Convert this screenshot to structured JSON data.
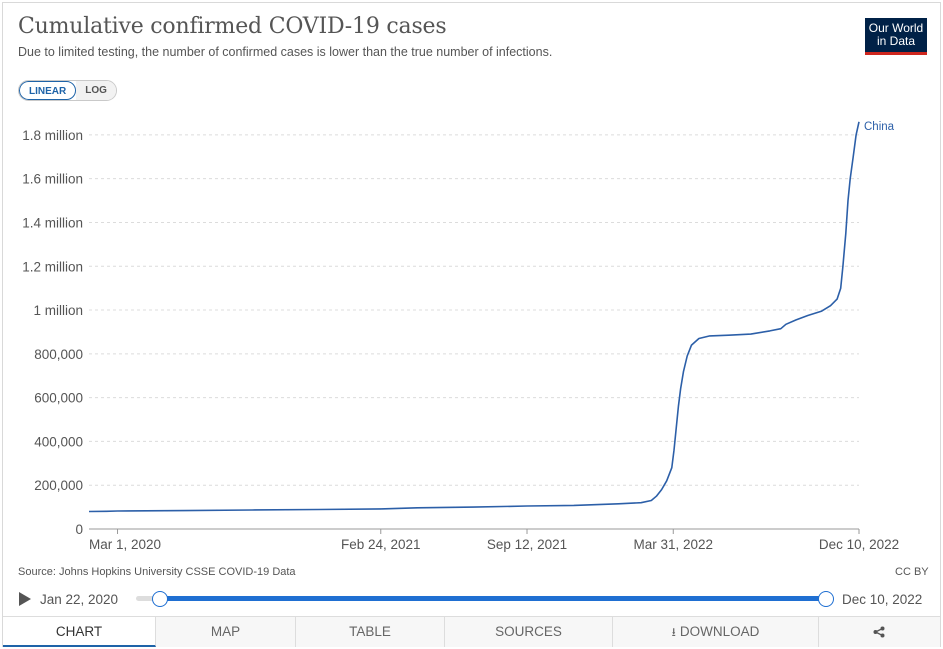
{
  "header": {
    "title": "Cumulative confirmed COVID-19 cases",
    "subtitle": "Due to limited testing, the number of confirmed cases is lower than the true number of infections.",
    "logo_line1": "Our World",
    "logo_line2": "in Data"
  },
  "scale_toggle": {
    "linear": "LINEAR",
    "log": "LOG",
    "selected": "LINEAR"
  },
  "chart_data": {
    "type": "line",
    "x_axis_type": "date",
    "y_axis_scale": "linear",
    "ylim": [
      0,
      1900000
    ],
    "grid": true,
    "y_ticks": [
      0,
      200000,
      400000,
      600000,
      800000,
      1000000,
      1200000,
      1400000,
      1600000,
      1800000
    ],
    "y_tick_labels": [
      "0",
      "200,000",
      "400,000",
      "600,000",
      "800,000",
      "1 million",
      "1.2 million",
      "1.4 million",
      "1.6 million",
      "1.8 million"
    ],
    "x_tick_labels": [
      "Mar 1, 2020",
      "Feb 24, 2021",
      "Sep 12, 2021",
      "Mar 31, 2022",
      "Dec 10, 2022"
    ],
    "x_tick_dates": [
      "2020-03-01",
      "2021-02-24",
      "2021-09-12",
      "2022-03-31",
      "2022-12-10"
    ],
    "series": [
      {
        "name": "China",
        "color": "#2c5fa8",
        "points": [
          [
            "2020-01-22",
            80000
          ],
          [
            "2020-02-15",
            81000
          ],
          [
            "2020-03-01",
            82000
          ],
          [
            "2020-06-01",
            84000
          ],
          [
            "2020-09-01",
            87000
          ],
          [
            "2020-12-01",
            89000
          ],
          [
            "2021-02-24",
            92000
          ],
          [
            "2021-04-15",
            97000
          ],
          [
            "2021-07-01",
            100000
          ],
          [
            "2021-09-12",
            105000
          ],
          [
            "2021-11-15",
            108000
          ],
          [
            "2022-01-15",
            115000
          ],
          [
            "2022-02-15",
            120000
          ],
          [
            "2022-03-01",
            130000
          ],
          [
            "2022-03-08",
            150000
          ],
          [
            "2022-03-15",
            180000
          ],
          [
            "2022-03-22",
            220000
          ],
          [
            "2022-03-29",
            280000
          ],
          [
            "2022-04-01",
            360000
          ],
          [
            "2022-04-04",
            460000
          ],
          [
            "2022-04-07",
            560000
          ],
          [
            "2022-04-10",
            640000
          ],
          [
            "2022-04-14",
            720000
          ],
          [
            "2022-04-19",
            790000
          ],
          [
            "2022-04-25",
            840000
          ],
          [
            "2022-05-05",
            870000
          ],
          [
            "2022-05-20",
            882000
          ],
          [
            "2022-06-15",
            885000
          ],
          [
            "2022-07-15",
            890000
          ],
          [
            "2022-08-10",
            905000
          ],
          [
            "2022-08-25",
            915000
          ],
          [
            "2022-09-01",
            935000
          ],
          [
            "2022-09-15",
            955000
          ],
          [
            "2022-10-01",
            975000
          ],
          [
            "2022-10-20",
            995000
          ],
          [
            "2022-11-01",
            1020000
          ],
          [
            "2022-11-10",
            1050000
          ],
          [
            "2022-11-15",
            1100000
          ],
          [
            "2022-11-18",
            1200000
          ],
          [
            "2022-11-22",
            1350000
          ],
          [
            "2022-11-25",
            1500000
          ],
          [
            "2022-11-28",
            1600000
          ],
          [
            "2022-12-02",
            1700000
          ],
          [
            "2022-12-06",
            1800000
          ],
          [
            "2022-12-10",
            1860000
          ]
        ]
      }
    ]
  },
  "footer": {
    "source": "Source: Johns Hopkins University CSSE COVID-19 Data",
    "license": "CC BY"
  },
  "timeline": {
    "start_label": "Jan 22, 2020",
    "end_label": "Dec 10, 2022"
  },
  "tabs": [
    {
      "label": "CHART",
      "active": true
    },
    {
      "label": "MAP",
      "active": false
    },
    {
      "label": "TABLE",
      "active": false
    },
    {
      "label": "SOURCES",
      "active": false
    },
    {
      "label": "DOWNLOAD",
      "active": false
    }
  ]
}
